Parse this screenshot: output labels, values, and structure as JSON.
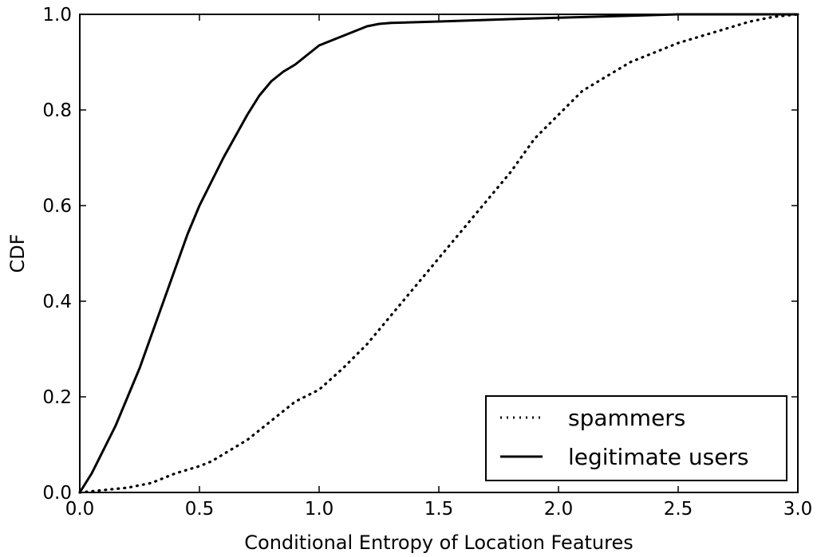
{
  "chart_data": {
    "type": "line",
    "title": "",
    "xlabel": "Conditional Entropy of Location Features",
    "ylabel": "CDF",
    "xlim": [
      0.0,
      3.0
    ],
    "ylim": [
      0.0,
      1.0
    ],
    "xticks": [
      "0.0",
      "0.5",
      "1.0",
      "1.5",
      "2.0",
      "2.5",
      "3.0"
    ],
    "yticks": [
      "0.0",
      "0.2",
      "0.4",
      "0.6",
      "0.8",
      "1.0"
    ],
    "grid": false,
    "legend_position": "lower-right",
    "series": [
      {
        "name": "spammers",
        "style": "dotted",
        "color": "#000000",
        "x": [
          0.0,
          0.1,
          0.2,
          0.3,
          0.4,
          0.5,
          0.55,
          0.6,
          0.7,
          0.8,
          0.9,
          1.0,
          1.1,
          1.2,
          1.3,
          1.4,
          1.5,
          1.6,
          1.7,
          1.8,
          1.9,
          2.0,
          2.1,
          2.2,
          2.3,
          2.4,
          2.5,
          2.6,
          2.7,
          2.8,
          2.9,
          3.0
        ],
        "y": [
          0.0,
          0.005,
          0.01,
          0.02,
          0.04,
          0.055,
          0.065,
          0.08,
          0.11,
          0.15,
          0.19,
          0.215,
          0.26,
          0.31,
          0.37,
          0.43,
          0.49,
          0.55,
          0.61,
          0.67,
          0.74,
          0.79,
          0.84,
          0.87,
          0.9,
          0.92,
          0.94,
          0.955,
          0.97,
          0.985,
          0.995,
          1.0
        ]
      },
      {
        "name": "legitimate users",
        "style": "solid",
        "color": "#000000",
        "x": [
          0.0,
          0.05,
          0.1,
          0.15,
          0.2,
          0.25,
          0.3,
          0.35,
          0.4,
          0.45,
          0.5,
          0.55,
          0.6,
          0.65,
          0.7,
          0.75,
          0.8,
          0.85,
          0.9,
          0.95,
          1.0,
          1.05,
          1.1,
          1.15,
          1.2,
          1.25,
          1.3,
          1.5,
          1.8,
          2.0,
          2.3,
          2.5,
          3.0
        ],
        "y": [
          0.0,
          0.04,
          0.09,
          0.14,
          0.2,
          0.26,
          0.33,
          0.4,
          0.47,
          0.54,
          0.6,
          0.65,
          0.7,
          0.745,
          0.79,
          0.83,
          0.86,
          0.88,
          0.895,
          0.915,
          0.935,
          0.945,
          0.955,
          0.965,
          0.975,
          0.98,
          0.982,
          0.985,
          0.99,
          0.993,
          0.997,
          1.0,
          1.0
        ]
      }
    ]
  }
}
